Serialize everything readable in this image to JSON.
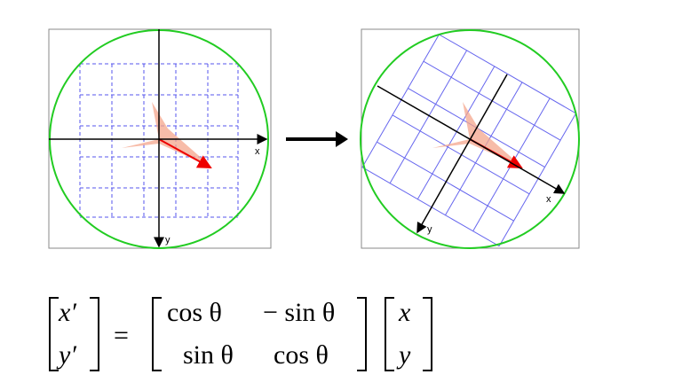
{
  "left_panel": {
    "x_label": "x",
    "y_label": "y"
  },
  "right_panel": {
    "x_label": "x",
    "y_label": "y"
  },
  "equation": {
    "lhs": [
      "x′",
      "y′"
    ],
    "equals": "=",
    "matrix": [
      [
        "cos θ",
        "− sin θ"
      ],
      [
        "sin θ",
        "cos θ"
      ]
    ],
    "rhs": [
      "x",
      "y"
    ]
  }
}
